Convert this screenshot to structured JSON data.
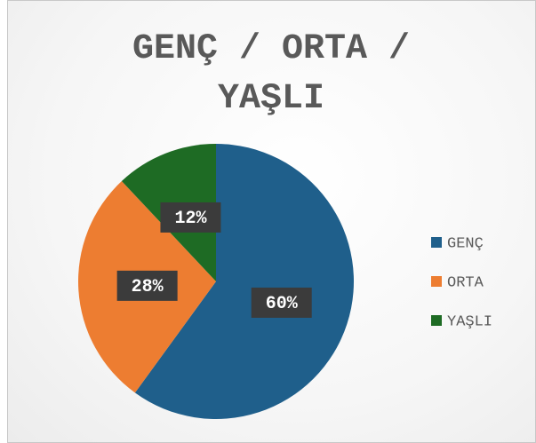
{
  "chart_data": {
    "type": "pie",
    "title": "GENÇ / ORTA / YAŞLI",
    "categories": [
      "GENÇ",
      "ORTA",
      "YAŞLI"
    ],
    "values": [
      60,
      28,
      12
    ],
    "value_labels": [
      "60%",
      "28%",
      "12%"
    ],
    "colors": [
      "#1f5f8b",
      "#ed7d31",
      "#1e6b24"
    ],
    "legend": "right"
  }
}
